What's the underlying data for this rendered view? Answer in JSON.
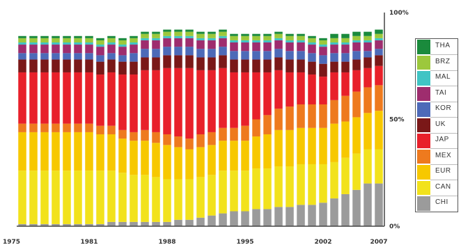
{
  "chart_data": {
    "type": "bar",
    "stacked": true,
    "title": "",
    "xlabel": "",
    "ylabel": "",
    "ylim": [
      0,
      100
    ],
    "x_tick_labels": [
      "1975",
      "1981",
      "1988",
      "1995",
      "2002",
      "2007"
    ],
    "y_tick_labels": [
      "100%",
      "50%",
      "0%"
    ],
    "grid": false,
    "legend_position": "right",
    "categories": [
      "1975",
      "1976",
      "1977",
      "1978",
      "1979",
      "1980",
      "1981",
      "1982",
      "1983",
      "1984",
      "1985",
      "1986",
      "1987",
      "1988",
      "1989",
      "1990",
      "1991",
      "1992",
      "1993",
      "1994",
      "1995",
      "1996",
      "1997",
      "1998",
      "1999",
      "2000",
      "2001",
      "2002",
      "2003",
      "2004",
      "2005",
      "2006",
      "2007"
    ],
    "series": [
      {
        "name": "CHI",
        "color": "#9b9b9b",
        "values": [
          1,
          1,
          1,
          1,
          1,
          1,
          1,
          1,
          2,
          2,
          2,
          2,
          2,
          2,
          3,
          3,
          4,
          5,
          6,
          7,
          7,
          8,
          8,
          9,
          9,
          10,
          10,
          11,
          13,
          15,
          17,
          20,
          20
        ]
      },
      {
        "name": "CAN",
        "color": "#f2e21c",
        "values": [
          25,
          25,
          25,
          25,
          25,
          25,
          25,
          25,
          24,
          23,
          22,
          22,
          21,
          20,
          19,
          19,
          19,
          19,
          20,
          19,
          19,
          19,
          19,
          19,
          19,
          19,
          19,
          18,
          17,
          17,
          17,
          16,
          16
        ]
      },
      {
        "name": "EUR",
        "color": "#f7c800",
        "values": [
          18,
          18,
          18,
          18,
          18,
          18,
          18,
          17,
          17,
          16,
          16,
          16,
          16,
          16,
          15,
          14,
          14,
          14,
          14,
          14,
          14,
          15,
          16,
          17,
          17,
          17,
          17,
          17,
          18,
          17,
          17,
          17,
          18
        ]
      },
      {
        "name": "MEX",
        "color": "#ee7a1e",
        "values": [
          4,
          4,
          4,
          4,
          4,
          4,
          4,
          4,
          4,
          4,
          4,
          5,
          5,
          5,
          5,
          5,
          6,
          6,
          6,
          6,
          7,
          8,
          9,
          10,
          11,
          11,
          11,
          11,
          11,
          12,
          12,
          12,
          12
        ]
      },
      {
        "name": "JAP",
        "color": "#e8202a",
        "values": [
          24,
          24,
          24,
          24,
          24,
          24,
          24,
          24,
          25,
          26,
          27,
          28,
          29,
          31,
          32,
          33,
          30,
          29,
          28,
          26,
          25,
          22,
          20,
          18,
          16,
          15,
          14,
          13,
          13,
          11,
          10,
          9,
          9
        ]
      },
      {
        "name": "UK",
        "color": "#7a1818",
        "values": [
          6,
          6,
          6,
          6,
          6,
          6,
          6,
          6,
          6,
          6,
          6,
          6,
          6,
          6,
          6,
          6,
          6,
          6,
          6,
          6,
          6,
          6,
          6,
          6,
          6,
          6,
          6,
          6,
          5,
          5,
          5,
          5,
          5
        ]
      },
      {
        "name": "KOR",
        "color": "#4d6ab8",
        "values": [
          3,
          3,
          3,
          3,
          3,
          3,
          3,
          3,
          3,
          3,
          4,
          4,
          4,
          4,
          4,
          4,
          4,
          4,
          4,
          4,
          4,
          4,
          4,
          4,
          4,
          4,
          4,
          4,
          4,
          4,
          4,
          3,
          3
        ]
      },
      {
        "name": "TAI",
        "color": "#9e2d6e",
        "values": [
          4,
          4,
          4,
          4,
          4,
          4,
          4,
          4,
          4,
          4,
          4,
          4,
          4,
          4,
          4,
          4,
          4,
          4,
          4,
          4,
          4,
          4,
          4,
          4,
          4,
          4,
          4,
          4,
          4,
          4,
          4,
          4,
          4
        ]
      },
      {
        "name": "MAL",
        "color": "#40c4c4",
        "values": [
          1,
          1,
          1,
          1,
          1,
          1,
          1,
          1,
          1,
          1,
          1,
          1,
          1,
          1,
          1,
          1,
          1,
          1,
          1,
          1,
          1,
          1,
          1,
          1,
          1,
          1,
          1,
          1,
          1,
          1,
          1,
          1,
          1
        ]
      },
      {
        "name": "BRZ",
        "color": "#9cc83c",
        "values": [
          2,
          2,
          2,
          2,
          2,
          2,
          2,
          2,
          2,
          2,
          2,
          2,
          2,
          2,
          2,
          2,
          2,
          2,
          2,
          2,
          2,
          2,
          2,
          2,
          2,
          2,
          2,
          2,
          2,
          2,
          2,
          2,
          2
        ]
      },
      {
        "name": "THA",
        "color": "#1a8a3c",
        "values": [
          1,
          1,
          1,
          1,
          1,
          1,
          1,
          1,
          1,
          1,
          1,
          1,
          1,
          1,
          1,
          1,
          1,
          1,
          1,
          1,
          1,
          1,
          1,
          1,
          1,
          1,
          1,
          1,
          2,
          2,
          2,
          2,
          2
        ]
      }
    ]
  }
}
